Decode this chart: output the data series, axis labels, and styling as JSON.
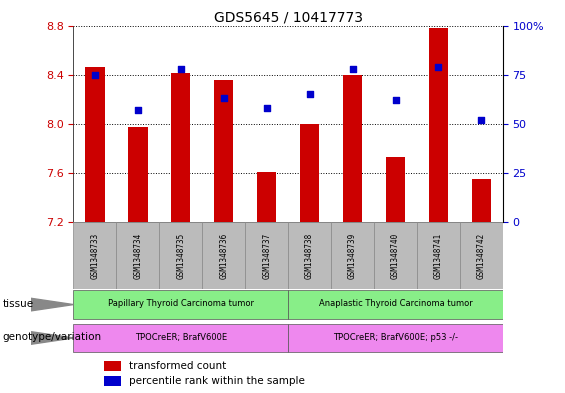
{
  "title": "GDS5645 / 10417773",
  "samples": [
    "GSM1348733",
    "GSM1348734",
    "GSM1348735",
    "GSM1348736",
    "GSM1348737",
    "GSM1348738",
    "GSM1348739",
    "GSM1348740",
    "GSM1348741",
    "GSM1348742"
  ],
  "bar_values": [
    8.46,
    7.97,
    8.41,
    8.36,
    7.61,
    8.0,
    8.4,
    7.73,
    8.78,
    7.55
  ],
  "percentile_values": [
    75,
    57,
    78,
    63,
    58,
    65,
    78,
    62,
    79,
    52
  ],
  "ymin": 7.2,
  "ymax": 8.8,
  "yticks": [
    7.2,
    7.6,
    8.0,
    8.4,
    8.8
  ],
  "right_yticks": [
    0,
    25,
    50,
    75,
    100
  ],
  "bar_color": "#cc0000",
  "dot_color": "#0000cc",
  "tissue_groups": [
    {
      "label": "Papillary Thyroid Carcinoma tumor",
      "start": 0,
      "end": 5,
      "color": "#88ee88"
    },
    {
      "label": "Anaplastic Thyroid Carcinoma tumor",
      "start": 5,
      "end": 10,
      "color": "#88ee88"
    }
  ],
  "genotype_groups": [
    {
      "label": "TPOCreER; BrafV600E",
      "start": 0,
      "end": 5,
      "color": "#ee88ee"
    },
    {
      "label": "TPOCreER; BrafV600E; p53 -/-",
      "start": 5,
      "end": 10,
      "color": "#ee88ee"
    }
  ],
  "tissue_label": "tissue",
  "genotype_label": "genotype/variation",
  "legend_items": [
    {
      "color": "#cc0000",
      "label": "transformed count"
    },
    {
      "color": "#0000cc",
      "label": "percentile rank within the sample"
    }
  ],
  "bar_bottom": 7.2,
  "background_color": "#ffffff",
  "tick_label_color_left": "#cc0000",
  "tick_label_color_right": "#0000cc",
  "xticklabel_bg": "#bbbbbb"
}
